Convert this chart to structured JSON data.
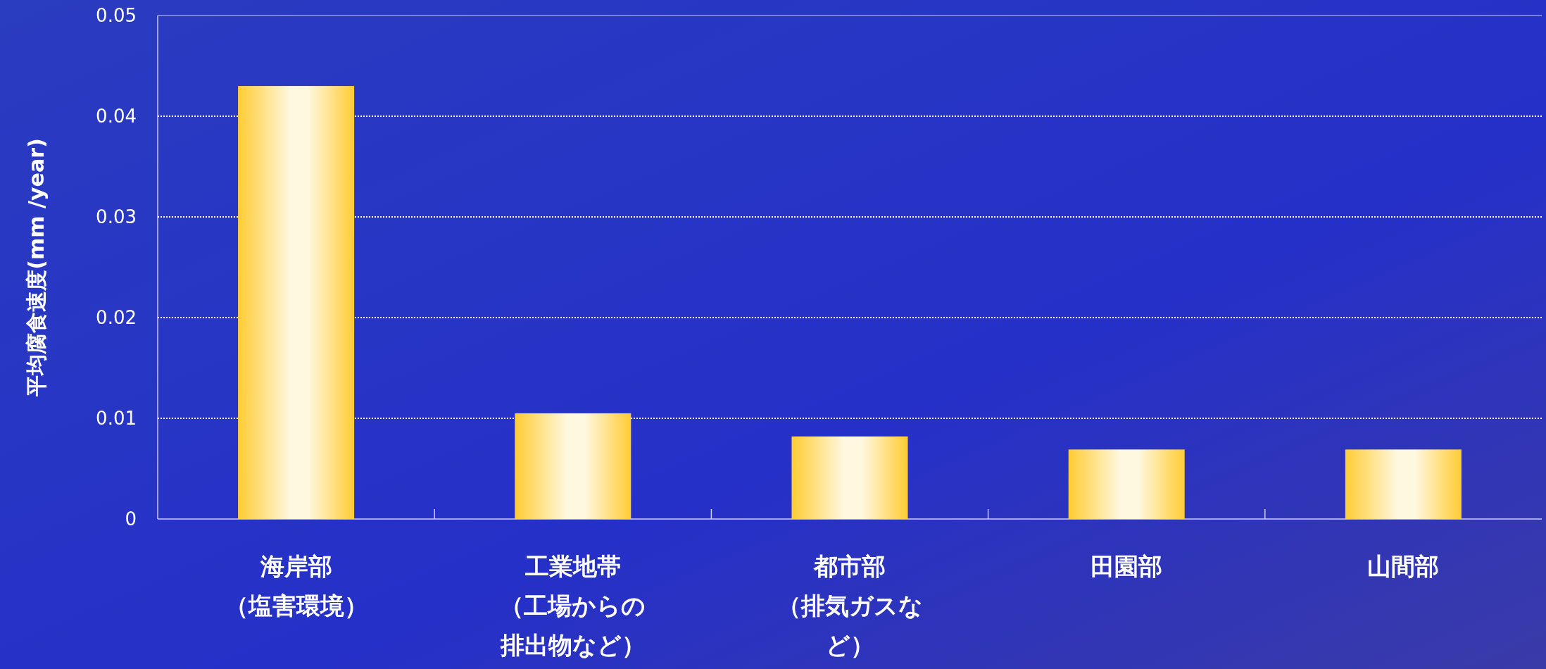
{
  "chart_data": {
    "type": "bar",
    "ylabel": "平均腐食速度(mm /year)",
    "categories": [
      "海岸部（塩害環境）",
      "工業地帯（工場からの排出物など）",
      "都市部（排気ガスなど）",
      "田園部",
      "山間部"
    ],
    "values": [
      0.043,
      0.0105,
      0.0082,
      0.0069,
      0.0069
    ],
    "color": "#ffcc33",
    "ylim": [
      0,
      0.05
    ],
    "yticks": [
      0,
      0.01,
      0.02,
      0.03,
      0.04,
      0.05
    ],
    "grid": "y"
  }
}
